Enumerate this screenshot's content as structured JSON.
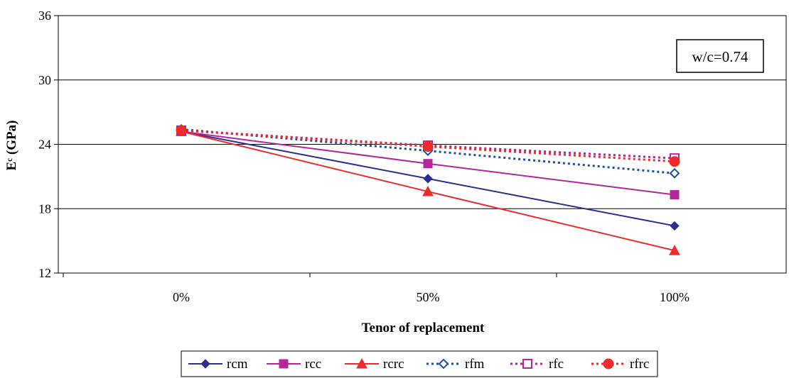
{
  "chart_data": {
    "type": "line",
    "title": "",
    "xlabel": "Tenor of replacement",
    "ylabel": "Eᶜ (GPa)",
    "categories": [
      "0%",
      "50%",
      "100%"
    ],
    "ylim": [
      12,
      36
    ],
    "yticks": [
      12,
      18,
      24,
      30,
      36
    ],
    "grid": true,
    "legend_position": "bottom",
    "annotation": "w/c=0.74",
    "series": [
      {
        "name": "rcm",
        "values": [
          25.2,
          20.8,
          16.4
        ],
        "color": "#2b2f8f",
        "marker": "diamond",
        "dash": "solid",
        "filled": true
      },
      {
        "name": "rcc",
        "values": [
          25.2,
          22.2,
          19.3
        ],
        "color": "#b5269b",
        "marker": "square",
        "dash": "solid",
        "filled": true
      },
      {
        "name": "rcrc",
        "values": [
          25.2,
          19.6,
          14.1
        ],
        "color": "#ee2a2a",
        "marker": "triangle",
        "dash": "solid",
        "filled": true
      },
      {
        "name": "rfm",
        "values": [
          25.4,
          23.4,
          21.3
        ],
        "color": "#1f4fa0",
        "marker": "diamond",
        "dash": "dotted",
        "filled": false
      },
      {
        "name": "rfc",
        "values": [
          25.3,
          23.9,
          22.7
        ],
        "color": "#b5269b",
        "marker": "square",
        "dash": "dotted",
        "filled": false
      },
      {
        "name": "rfrc",
        "values": [
          25.3,
          23.8,
          22.4
        ],
        "color": "#ee2a2a",
        "marker": "circle",
        "dash": "dotted",
        "filled": true
      }
    ]
  }
}
